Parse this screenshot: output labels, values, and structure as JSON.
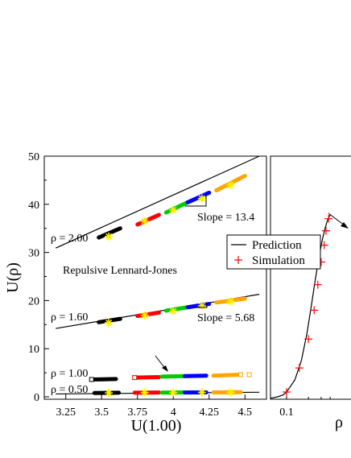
{
  "chart_data": [
    {
      "type": "scatter",
      "xlabel": "U(1.00)",
      "ylabel": "U(ρ)",
      "xlim": [
        3.1,
        4.65
      ],
      "ylim": [
        -0.5,
        50
      ],
      "xticks": [
        "3.25",
        "3.5",
        "3.75",
        "4",
        "4.25",
        "4.5"
      ],
      "xtick_values": [
        3.25,
        3.5,
        3.75,
        4.0,
        4.25,
        4.5
      ],
      "yticks": [
        "0",
        "10",
        "20",
        "30",
        "40",
        "50"
      ],
      "ytick_values": [
        0,
        10,
        20,
        30,
        40,
        50
      ],
      "grid": false,
      "annotations": {
        "model": "Repulsive Lennard-Jones",
        "slope_high": "Slope = 13.4",
        "slope_mid": "Slope = 5.68"
      },
      "series_colors": [
        "#000000",
        "#ff0000",
        "#00cc00",
        "#0000ff",
        "#ffa500"
      ],
      "series": [
        {
          "density_label": "ρ = 2.00",
          "fit_line": {
            "x": [
              3.18,
              4.6
            ],
            "y": [
              30.9,
              50.0
            ]
          },
          "segments": [
            {
              "x": [
                3.48,
                3.63
              ],
              "y": [
                33.1,
                35.0
              ]
            },
            {
              "x": [
                3.75,
                3.9
              ],
              "y": [
                35.8,
                37.8
              ]
            },
            {
              "x": [
                3.95,
                4.1
              ],
              "y": [
                38.3,
                40.4
              ]
            },
            {
              "x": [
                4.1,
                4.25
              ],
              "y": [
                40.4,
                42.4
              ]
            },
            {
              "x": [
                4.3,
                4.5
              ],
              "y": [
                42.9,
                45.9
              ]
            }
          ],
          "markers": {
            "x": [
              3.55,
              3.8,
              4.0,
              4.2,
              4.4
            ],
            "y": [
              33.3,
              36.5,
              38.8,
              41.2,
              44.0
            ]
          }
        },
        {
          "density_label": "ρ = 1.60",
          "fit_line": {
            "x": [
              3.18,
              4.6
            ],
            "y": [
              14.2,
              21.3
            ]
          },
          "segments": [
            {
              "x": [
                3.48,
                3.63
              ],
              "y": [
                15.5,
                16.2
              ]
            },
            {
              "x": [
                3.75,
                3.9
              ],
              "y": [
                16.8,
                17.5
              ]
            },
            {
              "x": [
                3.95,
                4.1
              ],
              "y": [
                17.9,
                18.6
              ]
            },
            {
              "x": [
                4.1,
                4.25
              ],
              "y": [
                18.6,
                19.3
              ]
            },
            {
              "x": [
                4.3,
                4.5
              ],
              "y": [
                19.6,
                20.4
              ]
            }
          ],
          "markers": {
            "x": [
              3.55,
              3.8,
              4.0,
              4.2,
              4.4
            ],
            "y": [
              15.4,
              16.9,
              17.8,
              18.9,
              19.8
            ]
          }
        },
        {
          "density_label": "ρ = 1.00",
          "segments": [
            {
              "x": [
                3.43,
                3.6
              ],
              "y": [
                3.6,
                3.7
              ]
            },
            {
              "x": [
                3.73,
                3.9
              ],
              "y": [
                4.0,
                4.1
              ]
            },
            {
              "x": [
                3.92,
                4.08
              ],
              "y": [
                4.2,
                4.3
              ]
            },
            {
              "x": [
                4.08,
                4.23
              ],
              "y": [
                4.3,
                4.4
              ]
            },
            {
              "x": [
                4.28,
                4.47
              ],
              "y": [
                4.4,
                4.6
              ]
            }
          ],
          "open_markers": {
            "x": [
              3.43,
              3.73,
              4.47,
              4.53
            ],
            "y": [
              3.6,
              4.0,
              4.6,
              4.6
            ]
          }
        },
        {
          "density_label": "ρ = 0.50",
          "fit_line": {
            "x": [
              3.18,
              4.6
            ],
            "y": [
              0.6,
              0.95
            ]
          },
          "segments": [
            {
              "x": [
                3.45,
                3.62
              ],
              "y": [
                0.8,
                0.85
              ]
            },
            {
              "x": [
                3.73,
                3.9
              ],
              "y": [
                0.85,
                0.9
              ]
            },
            {
              "x": [
                3.92,
                4.08
              ],
              "y": [
                0.88,
                0.92
              ]
            },
            {
              "x": [
                4.08,
                4.23
              ],
              "y": [
                0.9,
                0.93
              ]
            },
            {
              "x": [
                4.28,
                4.47
              ],
              "y": [
                0.92,
                0.96
              ]
            }
          ],
          "markers": {
            "x": [
              3.55,
              3.8,
              4.0,
              4.2,
              4.4
            ],
            "y": [
              0.82,
              0.87,
              0.9,
              0.92,
              0.95
            ]
          }
        }
      ]
    },
    {
      "type": "line",
      "xlabel": "ρ",
      "xscale": "log",
      "xlim": [
        0.06,
        1.0
      ],
      "ylim": [
        -0.5,
        50
      ],
      "xticks": [
        "0.1"
      ],
      "xtick_values": [
        0.1
      ],
      "legend": {
        "placement": "top-left",
        "entries": [
          "Prediction",
          "Simulation"
        ]
      },
      "series": [
        {
          "name": "Prediction",
          "color": "#000000",
          "x": [
            0.06,
            0.075,
            0.09,
            0.1,
            0.13,
            0.16,
            0.19,
            0.22,
            0.25,
            0.28,
            0.31,
            0.34,
            0.36,
            0.38,
            0.4
          ],
          "y": [
            -0.3,
            0.0,
            0.4,
            1.0,
            3.5,
            7.5,
            13.0,
            19.0,
            24.5,
            29.0,
            32.5,
            35.0,
            36.3,
            37.2,
            37.8
          ]
        },
        {
          "name": "Simulation",
          "color": "#ff0000",
          "x": [
            0.1,
            0.15,
            0.2,
            0.24,
            0.27,
            0.3,
            0.33,
            0.35,
            0.38
          ],
          "y": [
            1.0,
            6.0,
            12.0,
            18.0,
            23.3,
            28.0,
            31.5,
            34.5,
            37.0
          ]
        }
      ]
    }
  ]
}
